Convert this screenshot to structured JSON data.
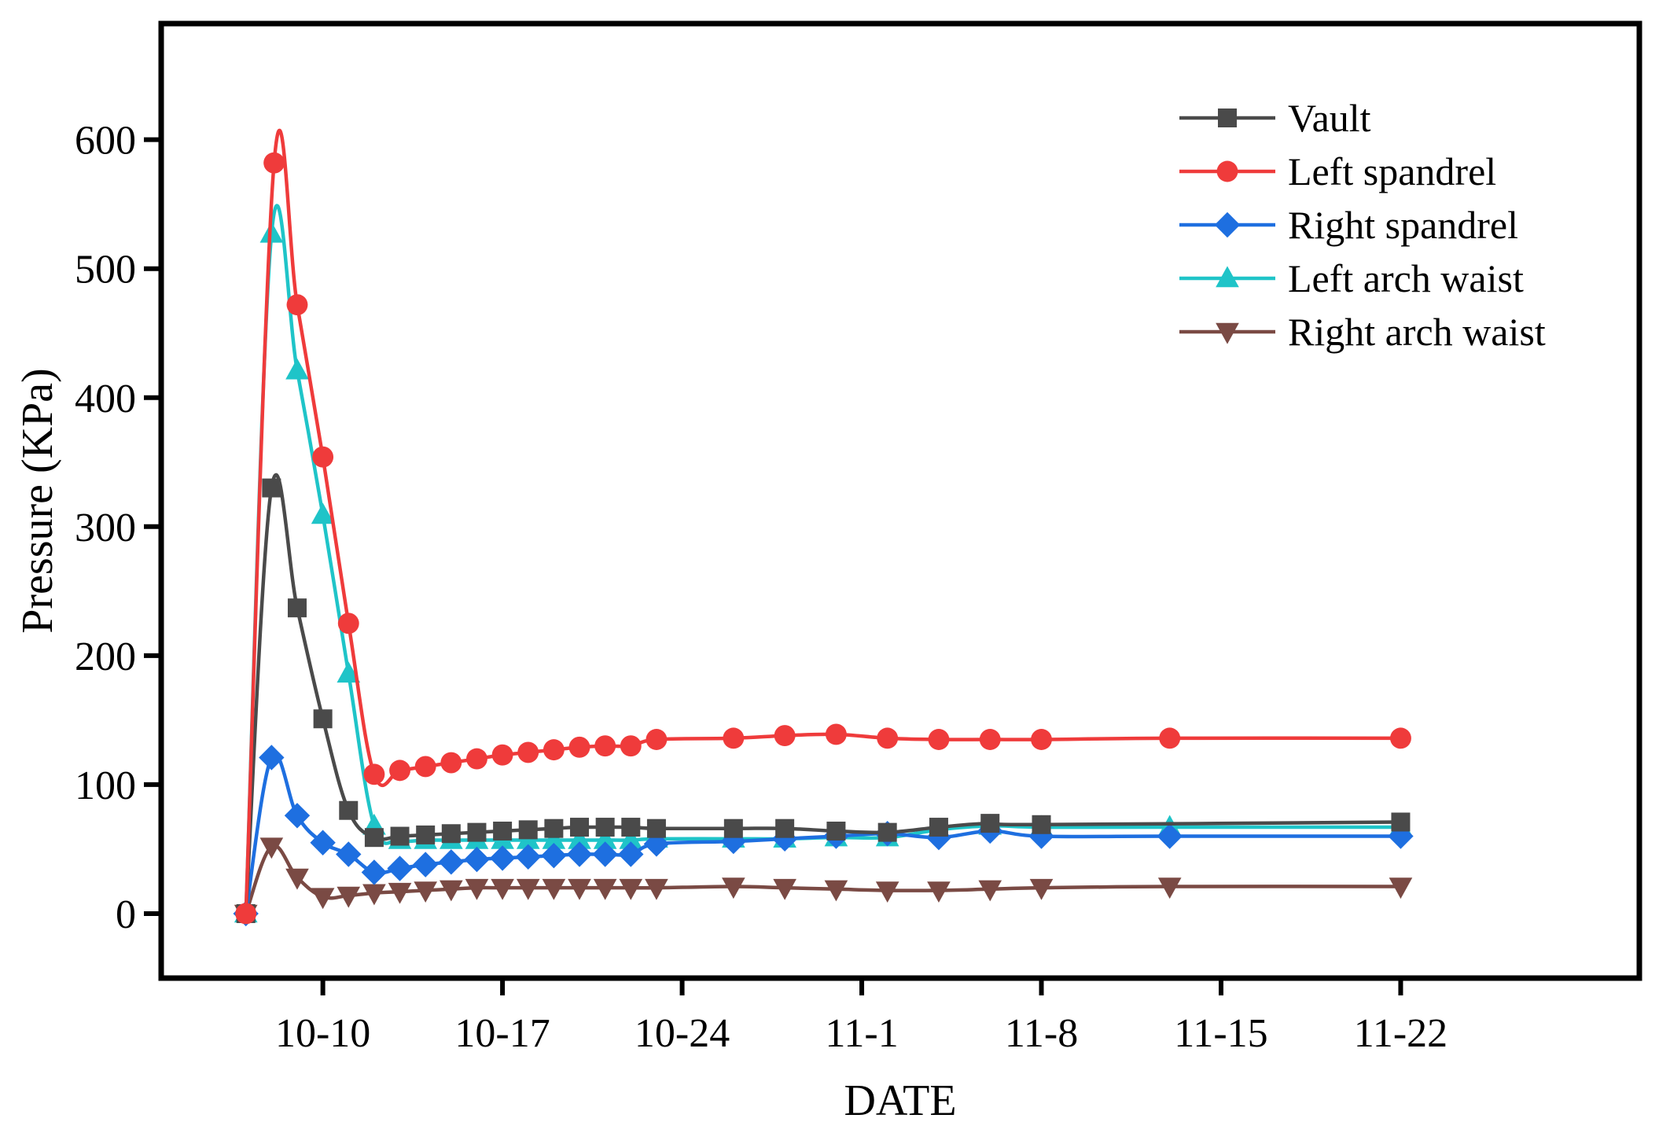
{
  "chart_data": {
    "type": "line",
    "title": "",
    "xlabel": "DATE",
    "ylabel": "Pressure (KPa)",
    "xlim": [
      -6.3,
      51.3
    ],
    "ylim": [
      -50,
      690
    ],
    "xtick_values": [
      0,
      7,
      14,
      21,
      28,
      35,
      42
    ],
    "xtick_labels": [
      "10-10",
      "10-17",
      "10-24",
      "11-1",
      "11-8",
      "11-15",
      "11-22"
    ],
    "yticks": [
      0,
      100,
      200,
      300,
      400,
      500,
      600
    ],
    "x_unit": "days from 10-10",
    "legend_position": "top-right",
    "series": [
      {
        "name": "Vault",
        "color": "#4a4a4a",
        "marker": "square",
        "x": [
          -3,
          -2,
          -1,
          0,
          1,
          2,
          3,
          4,
          5,
          6,
          7,
          8,
          9,
          10,
          11,
          12,
          13,
          16,
          18,
          20,
          22,
          24,
          26,
          28,
          42
        ],
        "y": [
          0,
          330,
          237,
          151,
          80,
          59,
          60,
          61,
          62,
          63,
          64,
          65,
          66,
          67,
          67,
          67,
          66,
          66,
          66,
          64,
          63,
          67,
          70,
          69,
          71
        ]
      },
      {
        "name": "Left spandrel",
        "color": "#ef3b3b",
        "marker": "circle",
        "x": [
          -3,
          -1.9,
          -1,
          0,
          1,
          2,
          3,
          4,
          5,
          6,
          7,
          8,
          9,
          10,
          11,
          12,
          13,
          16,
          18,
          20,
          22,
          24,
          26,
          28,
          33,
          42
        ],
        "y": [
          0,
          582,
          472,
          354,
          225,
          108,
          111,
          114,
          117,
          120,
          123,
          125,
          127,
          129,
          130,
          130,
          135,
          136,
          138,
          139,
          136,
          135,
          135,
          135,
          136,
          136
        ]
      },
      {
        "name": "Right spandrel",
        "color": "#1e6fe0",
        "marker": "diamond",
        "x": [
          -3,
          -2,
          -1,
          0,
          1,
          2,
          3,
          4,
          5,
          6,
          7,
          8,
          9,
          10,
          11,
          12,
          13,
          16,
          18,
          20,
          22,
          24,
          26,
          28,
          33,
          42
        ],
        "y": [
          0,
          121,
          76,
          55,
          46,
          32,
          35,
          38,
          40,
          42,
          43,
          44,
          45,
          46,
          46,
          46,
          54,
          56,
          58,
          60,
          62,
          59,
          64,
          60,
          60,
          60
        ]
      },
      {
        "name": "Left arch waist",
        "color": "#1fc4c8",
        "marker": "triangle-up",
        "x": [
          -3,
          -2,
          -1,
          0,
          1,
          2,
          3,
          4,
          5,
          6,
          7,
          8,
          9,
          10,
          11,
          12,
          13,
          16,
          18,
          20,
          22,
          24,
          26,
          28,
          33,
          42
        ],
        "y": [
          0,
          527,
          421,
          309,
          186,
          68,
          57,
          57,
          57,
          57,
          57,
          57,
          57,
          57,
          57,
          57,
          58,
          58,
          58,
          59,
          59,
          65,
          68,
          67,
          67,
          67
        ]
      },
      {
        "name": "Right arch waist",
        "color": "#7a4a44",
        "marker": "triangle-down",
        "x": [
          -3,
          -2,
          -1,
          0,
          1,
          2,
          3,
          4,
          5,
          6,
          7,
          8,
          9,
          10,
          11,
          12,
          13,
          16,
          18,
          20,
          22,
          24,
          26,
          28,
          33,
          42
        ],
        "y": [
          0,
          52,
          28,
          13,
          14,
          16,
          17,
          18,
          19,
          20,
          20,
          20,
          20,
          20,
          20,
          20,
          20,
          21,
          20,
          19,
          18,
          18,
          19,
          20,
          21,
          21
        ]
      }
    ]
  }
}
